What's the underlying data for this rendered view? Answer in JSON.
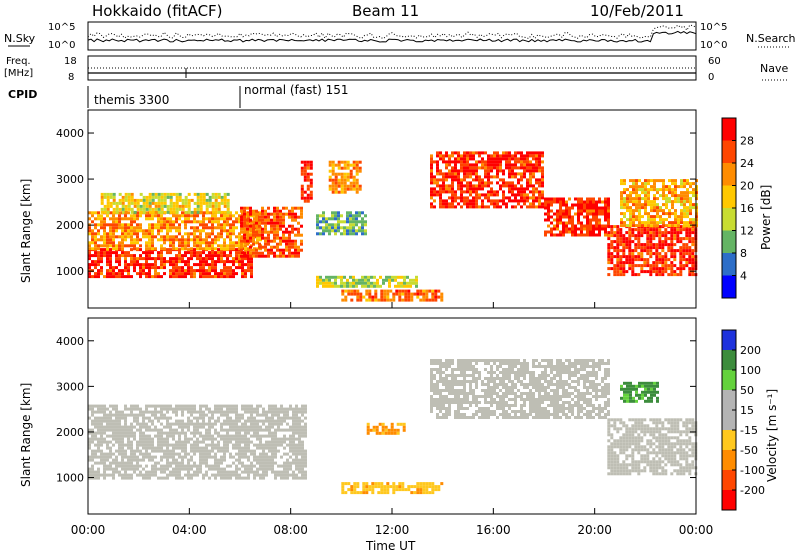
{
  "header": {
    "site": "Hokkaido (fitACF)",
    "beam": "Beam 11",
    "date": "10/Feb/2011"
  },
  "noise_panel": {
    "left_label": "N.Sky",
    "right_label": "N.Search",
    "ticks": [
      "10^5",
      "10^0"
    ]
  },
  "freq_panel": {
    "left_label_1": "Freq.",
    "left_label_2": "[MHz]",
    "left_ticks": [
      "18",
      "8"
    ],
    "right_label": "Nave",
    "right_ticks": [
      "60",
      "0"
    ]
  },
  "cpid": {
    "label": "CPID",
    "modes": [
      "themis 3300",
      "normal (fast) 151"
    ]
  },
  "power_panel": {
    "ylabel": "Slant Range [km]",
    "cbar_label": "Power [dB]",
    "cbar_ticks": [
      "28",
      "24",
      "20",
      "16",
      "12",
      "8",
      "4"
    ],
    "cbar_colors": [
      "#ff0000",
      "#ff4600",
      "#ff8c00",
      "#ffc800",
      "#c8dc32",
      "#64b464",
      "#2d6ec8",
      "#0000ff"
    ]
  },
  "velocity_panel": {
    "ylabel": "Slant Range [km]",
    "cbar_label": "Velocity [m s⁻¹]",
    "cbar_ticks": [
      "200",
      "100",
      "50",
      "15",
      "-15",
      "-50",
      "-100",
      "-200"
    ],
    "cbar_colors": [
      "#1e32dc",
      "#3c8c3c",
      "#64d23c",
      "#b4b4b4",
      "#b4b4b4",
      "#ffc81e",
      "#ff8c00",
      "#ff4600",
      "#ff0000"
    ]
  },
  "xaxis": {
    "label": "Time UT",
    "ticks": [
      "00:00",
      "04:00",
      "08:00",
      "12:00",
      "16:00",
      "20:00",
      "00:00"
    ]
  },
  "chart_data": {
    "type": "heatmap",
    "title": "Hokkaido (fitACF)  Beam 11  10/Feb/2011",
    "xlabel": "Time UT",
    "ylabel": "Slant Range [km]",
    "xlim": [
      0,
      24
    ],
    "ylim": [
      200,
      4500
    ],
    "y_ticks": [
      1000,
      2000,
      3000,
      4000
    ],
    "power_dB_range": [
      0,
      30
    ],
    "velocity_range": [
      -200,
      200
    ],
    "cpid_changes": [
      {
        "start_h": 0,
        "mode": "themis 3300"
      },
      {
        "start_h": 6,
        "mode": "normal (fast) 151"
      }
    ],
    "power_regions": [
      {
        "t0": 0.0,
        "t1": 6.5,
        "r0": 900,
        "r1": 1500,
        "db": 26
      },
      {
        "t0": 0.0,
        "t1": 6.8,
        "r0": 1500,
        "r1": 2300,
        "db": 20
      },
      {
        "t0": 0.5,
        "t1": 5.5,
        "r0": 2300,
        "r1": 2700,
        "db": 14
      },
      {
        "t0": 6.0,
        "t1": 8.4,
        "r0": 1300,
        "r1": 2400,
        "db": 24
      },
      {
        "t0": 8.4,
        "t1": 8.8,
        "r0": 2500,
        "r1": 3400,
        "db": 26
      },
      {
        "t0": 9.0,
        "t1": 11.0,
        "r0": 1800,
        "r1": 2300,
        "db": 8
      },
      {
        "t0": 9.5,
        "t1": 10.8,
        "r0": 2700,
        "r1": 3400,
        "db": 20
      },
      {
        "t0": 9.0,
        "t1": 13.0,
        "r0": 700,
        "r1": 900,
        "db": 12
      },
      {
        "t0": 10.0,
        "t1": 14.0,
        "r0": 400,
        "r1": 600,
        "db": 22
      },
      {
        "t0": 13.5,
        "t1": 18.0,
        "r0": 2400,
        "r1": 3600,
        "db": 26
      },
      {
        "t0": 18.0,
        "t1": 20.5,
        "r0": 1800,
        "r1": 2600,
        "db": 26
      },
      {
        "t0": 20.5,
        "t1": 24.0,
        "r0": 900,
        "r1": 2000,
        "db": 26
      },
      {
        "t0": 21.0,
        "t1": 24.0,
        "r0": 2000,
        "r1": 3000,
        "db": 18
      }
    ],
    "velocity_regions": [
      {
        "t0": 0.0,
        "t1": 8.6,
        "r0": 1000,
        "r1": 2600,
        "v": 0
      },
      {
        "t0": 13.5,
        "t1": 20.5,
        "r0": 2300,
        "r1": 3600,
        "v": 0
      },
      {
        "t0": 20.5,
        "t1": 24.0,
        "r0": 1100,
        "r1": 2300,
        "v": 0
      },
      {
        "t0": 11.0,
        "t1": 12.5,
        "r0": 2000,
        "r1": 2200,
        "v": -60
      },
      {
        "t0": 10.0,
        "t1": 14.0,
        "r0": 700,
        "r1": 900,
        "v": -40
      },
      {
        "t0": 21.0,
        "t1": 22.5,
        "r0": 2700,
        "r1": 3100,
        "v": 60
      }
    ]
  }
}
